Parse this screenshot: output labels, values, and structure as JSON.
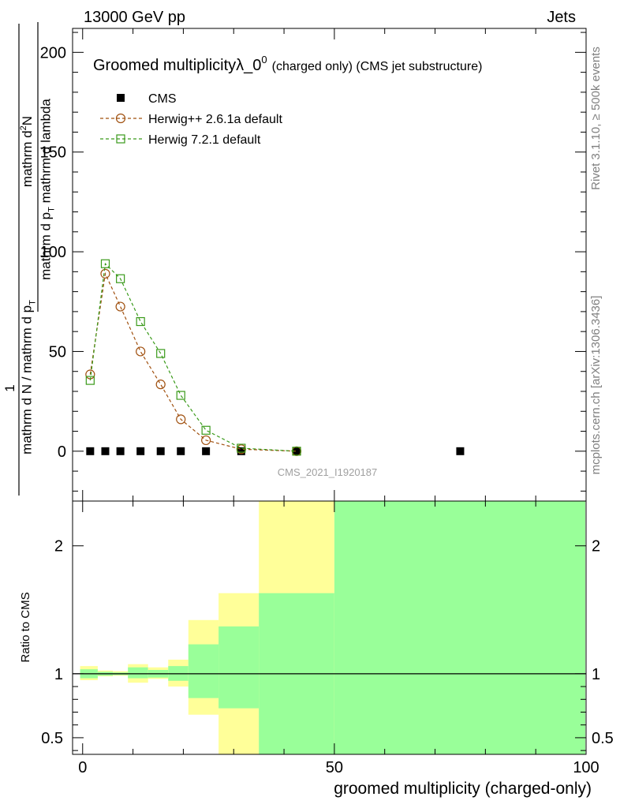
{
  "header": {
    "left": "13000 GeV pp",
    "right": "Jets"
  },
  "side_labels": {
    "rivet": "Rivet 3.1.10, ≥ 500k events",
    "mcplots": "mcplots.cern.ch [arXiv:1306.3436]"
  },
  "watermark": "CMS_2021_I1920187",
  "colors": {
    "cms": "#000000",
    "herwigpp": "#a0500f",
    "herwig7": "#3a9a1a",
    "band_inner": "#99ff99",
    "band_outer": "#ffff99"
  },
  "chart_data": [
    {
      "type": "scatter",
      "title_main": "Groomed multiplicityλ_0",
      "title_sup": "0",
      "title_small": "(charged only) (CMS jet substructure)",
      "ylabel_top_num": "mathrm d",
      "ylabel_top_sup": "2",
      "ylabel_top_n": "N",
      "ylabel_top_den": "mathrm d p",
      "ylabel_top_den_sub": "T",
      "ylabel_top_den2": " mathrm d lambda",
      "ylabel_left_num": "1",
      "ylabel_left_den": "mathrm d N / mathrm d p",
      "ylabel_left_den_sub": "T",
      "xlim": [
        -2,
        100
      ],
      "ylim": [
        -25,
        212
      ],
      "yticks": [
        0,
        50,
        100,
        150,
        200
      ],
      "ytick_labels": [
        "0",
        "50",
        "100",
        "150",
        "200"
      ],
      "legend_position": "top-left",
      "series": [
        {
          "name": "CMS",
          "marker": "filled-square",
          "x": [
            1.5,
            4.5,
            7.5,
            11.5,
            15.5,
            19.5,
            24.5,
            31.5,
            42.5,
            75
          ],
          "y": [
            0,
            0,
            0,
            0,
            0,
            0,
            0,
            0,
            0,
            0
          ]
        },
        {
          "name": "Herwig++ 2.6.1a default",
          "marker": "open-circle",
          "x": [
            1.5,
            4.5,
            7.5,
            11.5,
            15.5,
            19.5,
            24.5,
            31.5,
            42.5
          ],
          "y": [
            38.5,
            89,
            72.5,
            50,
            33.5,
            16,
            5.5,
            1,
            0
          ]
        },
        {
          "name": "Herwig 7.2.1 default",
          "marker": "open-square",
          "x": [
            1.5,
            4.5,
            7.5,
            11.5,
            15.5,
            19.5,
            24.5,
            31.5,
            42.5
          ],
          "y": [
            35.5,
            94,
            86.5,
            65,
            49,
            28,
            10.5,
            1.5,
            0
          ]
        }
      ]
    },
    {
      "type": "area",
      "ylabel": "Ratio to CMS",
      "xlabel": "groomed multiplicity (charged-only)",
      "xlim": [
        -2,
        100
      ],
      "ylim": [
        0.37,
        2.35
      ],
      "yticks": [
        0.5,
        1,
        2
      ],
      "ytick_labels": [
        "0.5",
        "1",
        "2"
      ],
      "xticks": [
        0,
        50,
        100
      ],
      "xtick_labels": [
        "0",
        "50",
        "100"
      ],
      "reference_line": 1,
      "bins": [
        {
          "lo": -0.5,
          "hi": 3,
          "inner": [
            0.965,
            1.035
          ],
          "outer": [
            0.95,
            1.06
          ]
        },
        {
          "lo": 3,
          "hi": 6,
          "inner": [
            0.985,
            1.015
          ],
          "outer": [
            0.98,
            1.025
          ]
        },
        {
          "lo": 6,
          "hi": 9,
          "inner": [
            0.99,
            1.01
          ],
          "outer": [
            0.985,
            1.02
          ]
        },
        {
          "lo": 9,
          "hi": 13,
          "inner": [
            0.965,
            1.05
          ],
          "outer": [
            0.93,
            1.075
          ]
        },
        {
          "lo": 13,
          "hi": 17,
          "inner": [
            0.97,
            1.03
          ],
          "outer": [
            0.96,
            1.05
          ]
        },
        {
          "lo": 17,
          "hi": 21,
          "inner": [
            0.945,
            1.06
          ],
          "outer": [
            0.9,
            1.11
          ]
        },
        {
          "lo": 21,
          "hi": 27,
          "inner": [
            0.81,
            1.23
          ],
          "outer": [
            0.68,
            1.42
          ]
        },
        {
          "lo": 27,
          "hi": 35,
          "inner": [
            0.73,
            1.37
          ],
          "outer": [
            0.37,
            1.63
          ]
        },
        {
          "lo": 35,
          "hi": 50,
          "inner": [
            0.37,
            1.63
          ],
          "outer": [
            0.37,
            2.35
          ]
        },
        {
          "lo": 50,
          "hi": 100,
          "inner": [
            0.37,
            2.35
          ],
          "outer": [
            0.37,
            2.35
          ]
        }
      ]
    }
  ]
}
